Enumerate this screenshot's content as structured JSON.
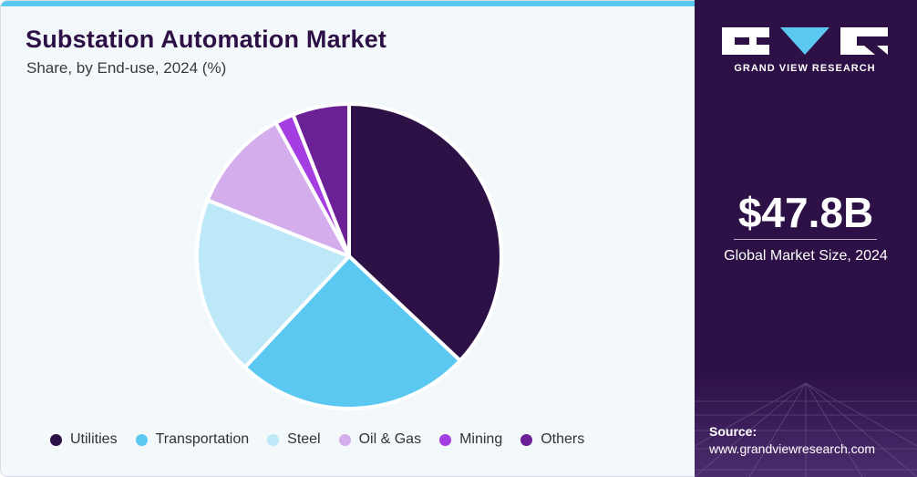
{
  "header": {
    "title": "Substation Automation Market",
    "subtitle": "Share, by End-use, 2024 (%)"
  },
  "chart_data": {
    "type": "pie",
    "title": "Substation Automation Market",
    "subtitle": "Share, by End-use, 2024 (%)",
    "categories": [
      "Utilities",
      "Transportation",
      "Steel",
      "Oil & Gas",
      "Mining",
      "Others"
    ],
    "values": [
      37,
      25,
      19,
      11,
      2,
      6
    ],
    "colors": [
      "#2d1045",
      "#5bc8f2",
      "#bde8f8",
      "#d4aeec",
      "#a53ee0",
      "#6c2096"
    ],
    "legend_position": "bottom"
  },
  "sidebar": {
    "logo_text": "GRAND VIEW RESEARCH",
    "market_value": "$47.8B",
    "market_caption": "Global Market Size, 2024",
    "source_label": "Source:",
    "source_url": "www.grandviewresearch.com"
  }
}
